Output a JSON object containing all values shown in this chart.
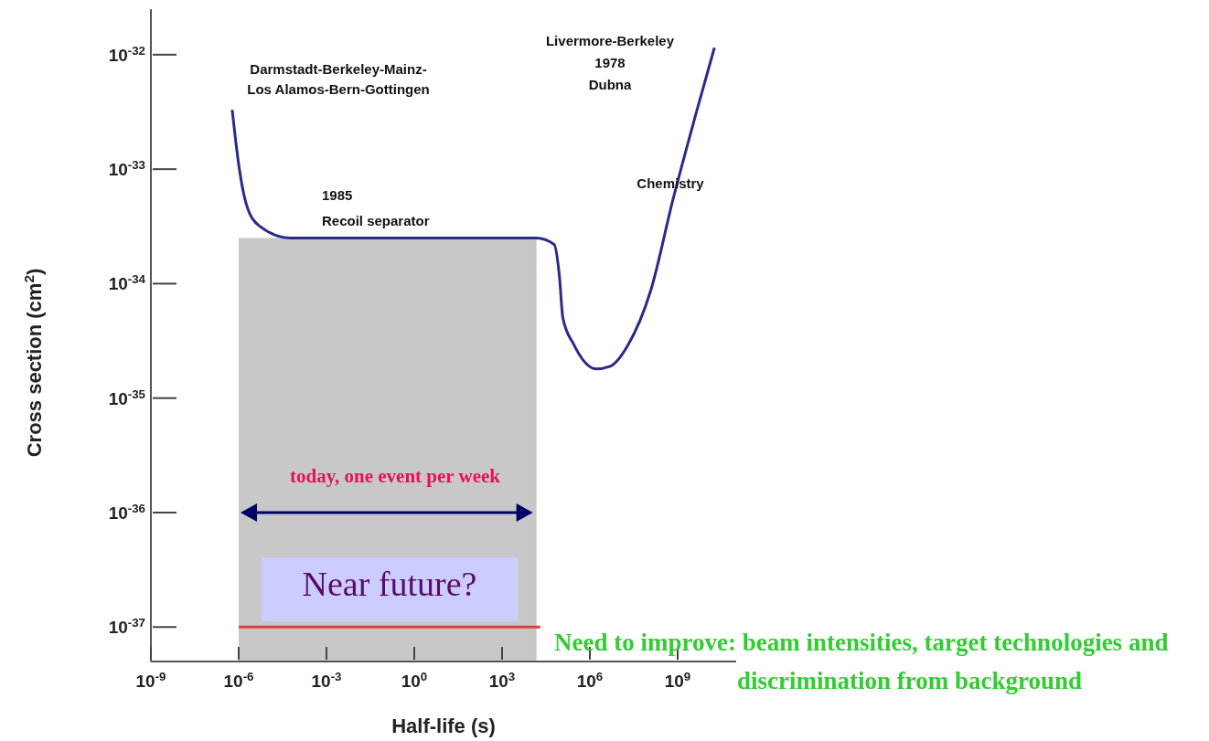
{
  "chart_data": {
    "type": "line",
    "xlabel": "Half-life (s)",
    "ylabel": "Cross section (cm$^{2}$)",
    "log": "xy",
    "xlim": [
      1e-09,
      100000000000.0
    ],
    "ylim": [
      5e-38,
      2.5e-32
    ],
    "xticks": [
      {
        "value": 1e-09,
        "label": "10$^{-9}$"
      },
      {
        "value": 1e-06,
        "label": "10$^{-6}$"
      },
      {
        "value": 0.001,
        "label": "10$^{-3}$"
      },
      {
        "value": 1,
        "label": "10$^{0}$"
      },
      {
        "value": 1000.0,
        "label": "10$^{3}$"
      },
      {
        "value": 1000000.0,
        "label": "10$^{6}$"
      },
      {
        "value": 1000000000.0,
        "label": "10$^{9}$"
      }
    ],
    "yticks": [
      {
        "value": 1e-37,
        "label": "10$^{-37}$"
      },
      {
        "value": 1e-36,
        "label": "10$^{-36}$"
      },
      {
        "value": 1e-35,
        "label": "10$^{-35}$"
      },
      {
        "value": 1e-34,
        "label": "10$^{-34}$"
      },
      {
        "value": 1e-33,
        "label": "10$^{-33}$"
      },
      {
        "value": 1e-32,
        "label": "10$^{-32}$"
      }
    ],
    "series": [
      {
        "type": "area",
        "color": "#c8c8c8",
        "x": [
          1e-06,
          15000.0
        ],
        "values": [
          2.5e-34,
          2.5e-34
        ]
      },
      {
        "color": "#2a2a8a",
        "x": [
          6e-07,
          1e-06,
          1.8e-06,
          5e-06,
          6e-05,
          15000.0,
          60000.0,
          90000.0,
          120000.0,
          270000.0,
          1600000.0,
          5000000.0,
          20000000.0,
          120000000.0,
          700000000.0,
          4000000000.0,
          18000000000.0
        ],
        "values": [
          3.3e-33,
          1.1e-33,
          5e-34,
          3.2e-34,
          2.5e-34,
          2.5e-34,
          2.2e-34,
          1.2e-34,
          5e-35,
          3e-35,
          1.8e-35,
          1.9e-35,
          2.9e-35,
          8.7e-35,
          5.5e-34,
          2.9e-33,
          1.15e-32
        ]
      },
      {
        "type": "line",
        "color": "#e83a3a",
        "x": [
          1e-06,
          20000.0
        ],
        "values": [
          1e-37,
          1e-37
        ]
      }
    ],
    "annotations": [
      "Darmstadt-Berkeley-Mainz-\nLos Alamos-Bern-Gottingen",
      "Livermore-Berkeley\n1978\nDubna",
      "1985\nRecoil separator",
      "Chemistry",
      "today, one event per week",
      "Near future?",
      "Need to improve: beam intensities, target technologies and discrimination from background"
    ]
  }
}
